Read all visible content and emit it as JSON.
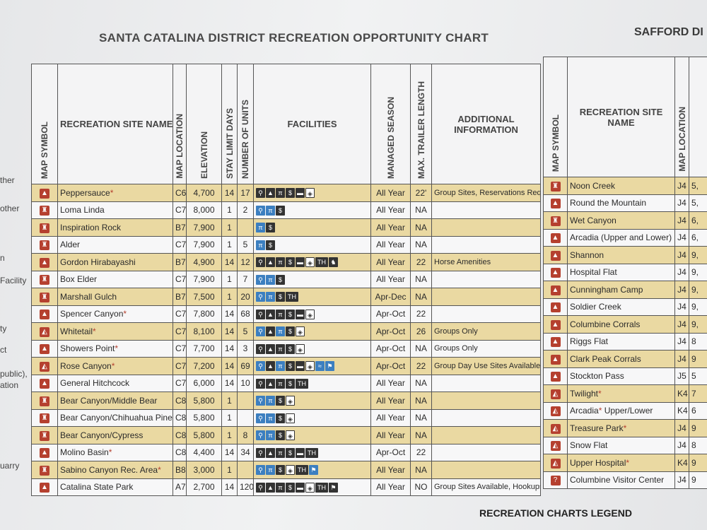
{
  "title": "SANTA CATALINA DISTRICT RECREATION OPPORTUNITY CHART",
  "title_right": "SAFFORD DI",
  "legend_title": "RECREATION CHARTS LEGEND",
  "left_margin": [
    "ther",
    "other",
    "n",
    "Facility",
    "ty",
    "ct",
    "public),",
    "ation",
    "uarry"
  ],
  "headers": {
    "map_symbol": "MAP SYMBOL",
    "site_name": "RECREATION SITE NAME",
    "map_location": "MAP LOCATION",
    "elevation": "ELEVATION",
    "stay_limit": "STAY LIMIT DAYS",
    "units": "NUMBER OF UNITS",
    "facilities": "FACILITIES",
    "season": "MANAGED SEASON",
    "trailer": "MAX. TRAILER LENGTH",
    "info": "ADDITIONAL INFORMATION"
  },
  "rows": [
    {
      "symbol": "camp",
      "name": "Peppersauce",
      "ast": true,
      "loc": "C6",
      "elev": "4,700",
      "stay": "14",
      "units": "17",
      "fac": [
        "toilet",
        "tent",
        "table",
        "$",
        "rv",
        "water"
      ],
      "season": "All Year",
      "trailer": "22'",
      "info": "Group Sites, Reservations Req."
    },
    {
      "symbol": "picnic",
      "name": "Loma Linda",
      "ast": false,
      "loc": "C7",
      "elev": "8,000",
      "stay": "1",
      "units": "2",
      "fac": [
        "toilet",
        "table",
        "$"
      ],
      "season": "All Year",
      "trailer": "NA",
      "info": ""
    },
    {
      "symbol": "picnic",
      "name": "Inspiration Rock",
      "ast": false,
      "loc": "B7",
      "elev": "7,900",
      "stay": "1",
      "units": "",
      "fac": [
        "table",
        "$"
      ],
      "season": "All Year",
      "trailer": "NA",
      "info": ""
    },
    {
      "symbol": "picnic",
      "name": "Alder",
      "ast": false,
      "loc": "C7",
      "elev": "7,900",
      "stay": "1",
      "units": "5",
      "fac": [
        "table",
        "$"
      ],
      "season": "All Year",
      "trailer": "NA",
      "info": ""
    },
    {
      "symbol": "camp",
      "name": "Gordon Hirabayashi",
      "ast": false,
      "loc": "B7",
      "elev": "4,900",
      "stay": "14",
      "units": "12",
      "fac": [
        "toilet",
        "tent",
        "table",
        "$",
        "rv",
        "water",
        "TH",
        "horse"
      ],
      "season": "All Year",
      "trailer": "22",
      "info": "Horse Amenities"
    },
    {
      "symbol": "picnic",
      "name": "Box Elder",
      "ast": false,
      "loc": "C7",
      "elev": "7,900",
      "stay": "1",
      "units": "7",
      "fac": [
        "toilet",
        "table",
        "$"
      ],
      "season": "All Year",
      "trailer": "NA",
      "info": ""
    },
    {
      "symbol": "picnic",
      "name": "Marshall Gulch",
      "ast": false,
      "loc": "B7",
      "elev": "7,500",
      "stay": "1",
      "units": "20",
      "fac": [
        "toilet",
        "table",
        "$",
        "TH"
      ],
      "season": "Apr-Dec",
      "trailer": "NA",
      "info": ""
    },
    {
      "symbol": "camp",
      "name": "Spencer Canyon",
      "ast": true,
      "loc": "C7",
      "elev": "7,800",
      "stay": "14",
      "units": "68",
      "fac": [
        "toilet",
        "tent",
        "table",
        "$",
        "rv",
        "water"
      ],
      "season": "Apr-Oct",
      "trailer": "22",
      "info": ""
    },
    {
      "symbol": "group",
      "name": "Whitetail",
      "ast": true,
      "loc": "C7",
      "elev": "8,100",
      "stay": "14",
      "units": "5",
      "fac": [
        "toilet",
        "tent",
        "table",
        "$",
        "water"
      ],
      "season": "Apr-Oct",
      "trailer": "26",
      "info": "Groups Only"
    },
    {
      "symbol": "camp",
      "name": "Showers Point",
      "ast": true,
      "loc": "C7",
      "elev": "7,700",
      "stay": "14",
      "units": "3",
      "fac": [
        "toilet",
        "tent",
        "table",
        "$",
        "water"
      ],
      "season": "Apr-Oct",
      "trailer": "NA",
      "info": "Groups Only"
    },
    {
      "symbol": "group",
      "name": "Rose Canyon",
      "ast": true,
      "loc": "C7",
      "elev": "7,200",
      "stay": "14",
      "units": "69",
      "fac": [
        "toilet",
        "tent",
        "table",
        "$",
        "rv",
        "water",
        "fish",
        "hike"
      ],
      "season": "Apr-Oct",
      "trailer": "22",
      "info": "Group Day Use Sites Available"
    },
    {
      "symbol": "camp",
      "name": "General Hitchcock",
      "ast": false,
      "loc": "C7",
      "elev": "6,000",
      "stay": "14",
      "units": "10",
      "fac": [
        "toilet",
        "tent",
        "table",
        "$",
        "TH"
      ],
      "season": "All Year",
      "trailer": "NA",
      "info": ""
    },
    {
      "symbol": "picnic",
      "name": "Bear Canyon/Middle Bear",
      "ast": false,
      "loc": "C8",
      "elev": "5,800",
      "stay": "1",
      "units": "",
      "fac": [
        "toilet",
        "table",
        "$",
        "water"
      ],
      "season": "All Year",
      "trailer": "NA",
      "info": ""
    },
    {
      "symbol": "picnic",
      "name": "Bear Canyon/Chihuahua Pine",
      "ast": false,
      "loc": "C8",
      "elev": "5,800",
      "stay": "1",
      "units": "",
      "fac": [
        "toilet",
        "table",
        "$",
        "water"
      ],
      "season": "All Year",
      "trailer": "NA",
      "info": ""
    },
    {
      "symbol": "picnic",
      "name": "Bear Canyon/Cypress",
      "ast": false,
      "loc": "C8",
      "elev": "5,800",
      "stay": "1",
      "units": "8",
      "fac": [
        "toilet",
        "table",
        "$",
        "water"
      ],
      "season": "All Year",
      "trailer": "NA",
      "info": ""
    },
    {
      "symbol": "camp",
      "name": "Molino Basin",
      "ast": true,
      "loc": "C8",
      "elev": "4,400",
      "stay": "14",
      "units": "34",
      "fac": [
        "toilet",
        "tent",
        "table",
        "$",
        "rv",
        "TH"
      ],
      "season": "Apr-Oct",
      "trailer": "22",
      "info": ""
    },
    {
      "symbol": "picnic",
      "name": "Sabino Canyon Rec. Area",
      "ast": true,
      "loc": "B8",
      "elev": "3,000",
      "stay": "1",
      "units": "",
      "fac": [
        "toilet",
        "table",
        "$",
        "water",
        "TH",
        "hike"
      ],
      "season": "All Year",
      "trailer": "NA",
      "info": ""
    },
    {
      "symbol": "camp",
      "name": "Catalina State Park",
      "ast": false,
      "loc": "A7",
      "elev": "2,700",
      "stay": "14",
      "units": "120",
      "fac": [
        "toilet",
        "tent",
        "table",
        "$",
        "rv",
        "water",
        "TH",
        "hike"
      ],
      "season": "All Year",
      "trailer": "NO",
      "info": "Group Sites Available, Hookups"
    }
  ],
  "safford_headers": {
    "map_symbol": "MAP SYMBOL",
    "site_name": "RECREATION SITE NAME",
    "map_location": "MAP LOCATION"
  },
  "safford_rows": [
    {
      "symbol": "picnic",
      "name": "Noon Creek",
      "ast": false,
      "loc": "J4",
      "extra": "5,"
    },
    {
      "symbol": "camp",
      "name": "Round the Mountain",
      "ast": false,
      "loc": "J4",
      "extra": "5,"
    },
    {
      "symbol": "picnic",
      "name": "Wet Canyon",
      "ast": false,
      "loc": "J4",
      "extra": "6,"
    },
    {
      "symbol": "camp",
      "name": "Arcadia (Upper and Lower)",
      "ast": false,
      "loc": "J4",
      "extra": "6,"
    },
    {
      "symbol": "camp",
      "name": "Shannon",
      "ast": false,
      "loc": "J4",
      "extra": "9,"
    },
    {
      "symbol": "camp",
      "name": "Hospital Flat",
      "ast": false,
      "loc": "J4",
      "extra": "9,"
    },
    {
      "symbol": "camp",
      "name": "Cunningham Camp",
      "ast": false,
      "loc": "J4",
      "extra": "9,"
    },
    {
      "symbol": "camp",
      "name": "Soldier Creek",
      "ast": false,
      "loc": "J4",
      "extra": "9,"
    },
    {
      "symbol": "camp",
      "name": "Columbine Corrals",
      "ast": false,
      "loc": "J4",
      "extra": "9,"
    },
    {
      "symbol": "camp",
      "name": "Riggs Flat",
      "ast": false,
      "loc": "J4",
      "extra": "8"
    },
    {
      "symbol": "camp",
      "name": "Clark Peak Corrals",
      "ast": false,
      "loc": "J4",
      "extra": "9"
    },
    {
      "symbol": "camp",
      "name": "Stockton Pass",
      "ast": false,
      "loc": "J5",
      "extra": "5"
    },
    {
      "symbol": "group",
      "name": "Twilight",
      "ast": true,
      "loc": "K4",
      "extra": "7"
    },
    {
      "symbol": "group",
      "name": "Arcadia",
      "ast": true,
      "suffix": " Upper/Lower",
      "loc": "K4",
      "extra": "6"
    },
    {
      "symbol": "group",
      "name": "Treasure Park",
      "ast": true,
      "loc": "J4",
      "extra": "9"
    },
    {
      "symbol": "group",
      "name": "Snow Flat",
      "ast": false,
      "loc": "J4",
      "extra": "8"
    },
    {
      "symbol": "group",
      "name": "Upper Hospital",
      "ast": true,
      "loc": "K4",
      "extra": "9"
    },
    {
      "symbol": "info",
      "name": "Columbine Visitor Center",
      "ast": false,
      "loc": "J4",
      "extra": "9"
    }
  ]
}
